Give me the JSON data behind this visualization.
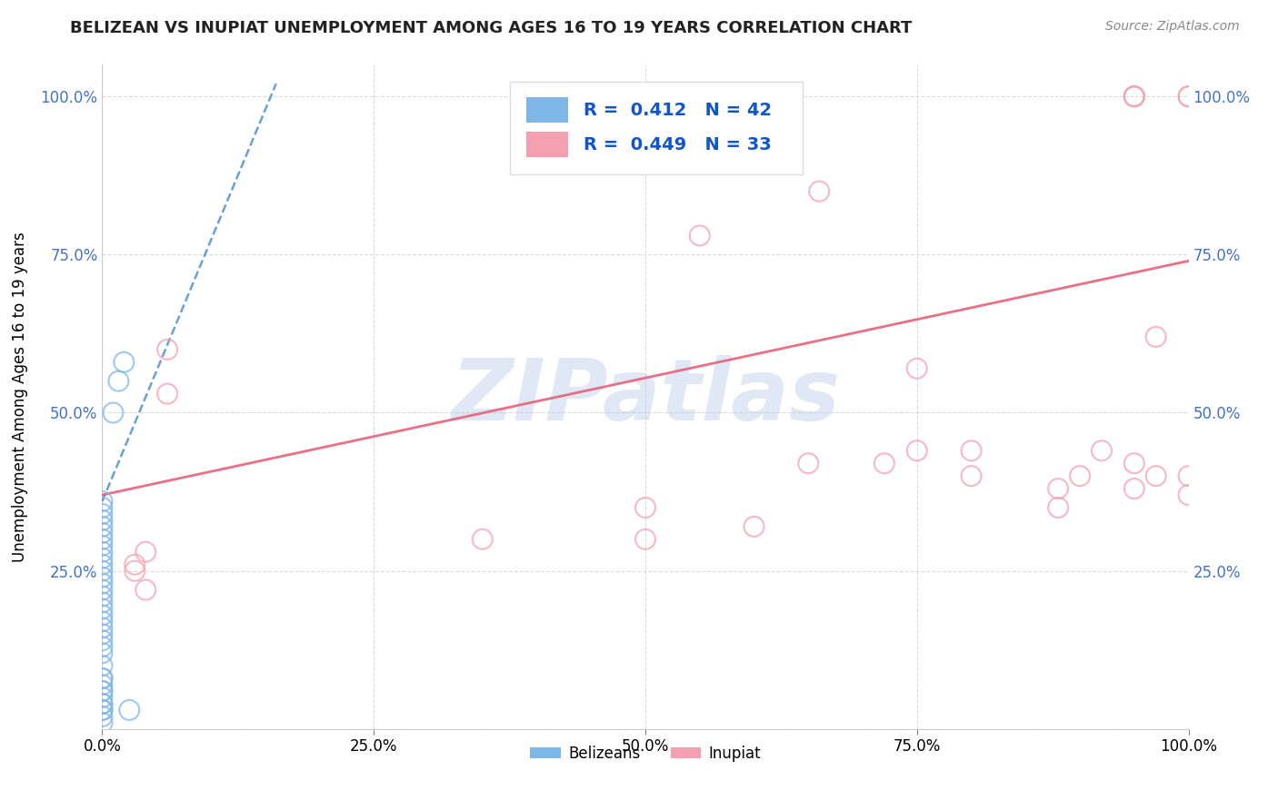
{
  "title": "BELIZEAN VS INUPIAT UNEMPLOYMENT AMONG AGES 16 TO 19 YEARS CORRELATION CHART",
  "source": "Source: ZipAtlas.com",
  "ylabel": "Unemployment Among Ages 16 to 19 years",
  "xlim": [
    0.0,
    1.0
  ],
  "ylim": [
    0.0,
    1.0
  ],
  "xticks": [
    0.0,
    0.25,
    0.5,
    0.75,
    1.0
  ],
  "xtick_labels": [
    "0.0%",
    "25.0%",
    "50.0%",
    "75.0%",
    "100.0%"
  ],
  "yticks": [
    0.25,
    0.5,
    0.75,
    1.0
  ],
  "ytick_labels": [
    "25.0%",
    "50.0%",
    "75.0%",
    "100.0%"
  ],
  "belizean_color": "#7EB6E8",
  "inupiat_color": "#F4A0B0",
  "belizean_trend_color": "#5090D0",
  "inupiat_trend_color": "#E8607A",
  "belizean_R": 0.412,
  "belizean_N": 42,
  "inupiat_R": 0.449,
  "inupiat_N": 33,
  "watermark_text": "ZIPatlas",
  "background_color": "#ffffff",
  "tick_label_color": "#4472C4",
  "belizean_x": [
    0.0,
    0.0,
    0.0,
    0.0,
    0.0,
    0.0,
    0.0,
    0.0,
    0.0,
    0.0,
    0.0,
    0.0,
    0.0,
    0.0,
    0.0,
    0.0,
    0.0,
    0.0,
    0.0,
    0.0,
    0.0,
    0.0,
    0.0,
    0.0,
    0.0,
    0.0,
    0.0,
    0.0,
    0.0,
    0.0,
    0.0,
    0.0,
    0.0,
    0.0,
    0.0,
    0.0,
    0.0,
    0.0,
    0.01,
    0.015,
    0.02,
    0.025
  ],
  "belizean_y": [
    0.36,
    0.35,
    0.34,
    0.33,
    0.32,
    0.31,
    0.3,
    0.29,
    0.28,
    0.27,
    0.26,
    0.25,
    0.24,
    0.23,
    0.22,
    0.21,
    0.2,
    0.19,
    0.18,
    0.17,
    0.16,
    0.15,
    0.14,
    0.13,
    0.12,
    0.1,
    0.08,
    0.06,
    0.04,
    0.03,
    0.02,
    0.01,
    0.03,
    0.04,
    0.05,
    0.06,
    0.07,
    0.08,
    0.5,
    0.55,
    0.58,
    0.03
  ],
  "inupiat_x": [
    0.03,
    0.04,
    0.03,
    0.04,
    0.06,
    0.06,
    0.35,
    0.5,
    0.5,
    0.55,
    0.6,
    0.65,
    0.66,
    0.72,
    0.75,
    0.75,
    0.8,
    0.8,
    0.88,
    0.88,
    0.9,
    0.92,
    0.95,
    0.95,
    0.95,
    0.95,
    0.95,
    0.97,
    0.97,
    1.0,
    1.0,
    1.0,
    1.0
  ],
  "inupiat_y": [
    0.26,
    0.22,
    0.25,
    0.28,
    0.53,
    0.6,
    0.3,
    0.3,
    0.35,
    0.78,
    0.32,
    0.42,
    0.85,
    0.42,
    0.44,
    0.57,
    0.4,
    0.44,
    0.35,
    0.38,
    0.4,
    0.44,
    0.38,
    0.42,
    1.0,
    1.0,
    1.0,
    0.4,
    0.62,
    0.37,
    0.4,
    1.0,
    1.0
  ],
  "belizean_line_x": [
    0.0,
    0.16
  ],
  "belizean_line_y": [
    0.36,
    1.02
  ],
  "inupiat_line_x": [
    0.0,
    1.0
  ],
  "inupiat_line_y": [
    0.37,
    0.74
  ]
}
